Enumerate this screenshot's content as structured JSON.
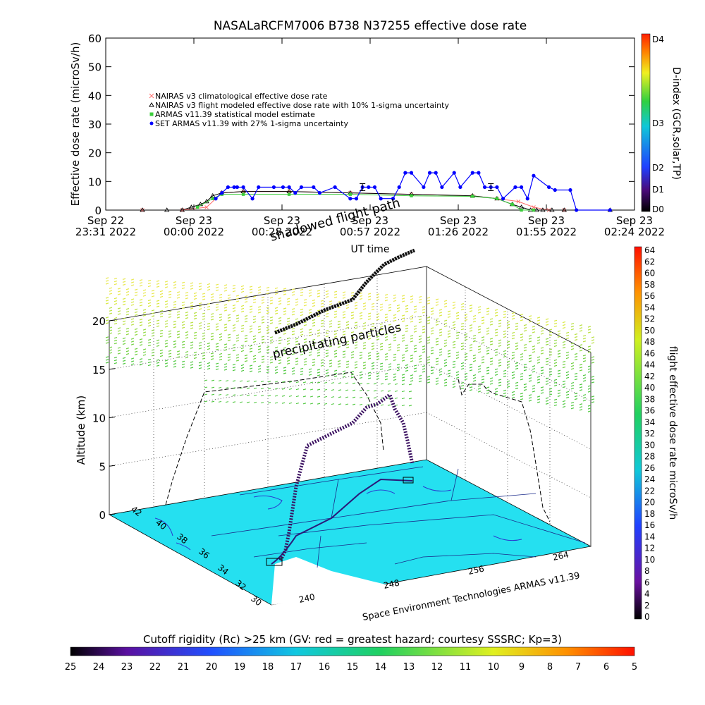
{
  "chart_data": [
    {
      "type": "line",
      "title": "NASALaRCFM7006  B738 N37255 effective dose rate",
      "xlabel": "UT time",
      "ylabel": "Effective dose rate (microSv/h)",
      "ylim": [
        0,
        60
      ],
      "yticks": [
        "0",
        "10",
        "20",
        "30",
        "40",
        "50",
        "60"
      ],
      "xticks": [
        {
          "top": "Sep 22",
          "bottom": "23:31 2022"
        },
        {
          "top": "Sep 23",
          "bottom": "00:00 2022"
        },
        {
          "top": "Sep 23",
          "bottom": "00:28 2022"
        },
        {
          "top": "Sep 23",
          "bottom": "00:57 2022"
        },
        {
          "top": "Sep 23",
          "bottom": "01:26 2022"
        },
        {
          "top": "Sep 23",
          "bottom": "01:55 2022"
        },
        {
          "top": "Sep 23",
          "bottom": "02:24 2022"
        }
      ],
      "xlim_minutes_from_first_tick": [
        0,
        173
      ],
      "legend_position": "upper-left",
      "series": [
        {
          "name": "NAIRAS v3 climatological effective dose rate",
          "color": "#ff6e6e",
          "marker": "x",
          "x": [
            12,
            25,
            33,
            38,
            45,
            60,
            80,
            100,
            120,
            128,
            135,
            140,
            145,
            150
          ],
          "y": [
            0,
            0,
            1,
            6,
            6.5,
            6.5,
            6,
            5.5,
            5,
            4,
            3,
            1,
            0,
            0
          ]
        },
        {
          "name": "NAIRAS v3 flight modeled effective dose rate with 10% 1-sigma uncertainty",
          "color": "#000000",
          "marker": "triangle",
          "x": [
            12,
            20,
            25,
            28,
            31,
            33,
            35,
            38,
            45,
            60,
            80,
            100,
            120,
            128,
            133,
            136,
            139,
            141,
            143,
            146,
            150,
            165
          ],
          "y": [
            0,
            0,
            0,
            1,
            2,
            3,
            5,
            6,
            6.5,
            6.5,
            6,
            5.5,
            5,
            4,
            2,
            1,
            0,
            0,
            0,
            0,
            0,
            0
          ]
        },
        {
          "name": "ARMAS v11.39 statistical model estimate",
          "color": "#3ccd3c",
          "marker": "square",
          "x": [
            30,
            35,
            38,
            45,
            60,
            80,
            100,
            120,
            128,
            133,
            136,
            140
          ],
          "y": [
            1,
            4,
            5.5,
            5.5,
            5.5,
            5.5,
            5,
            4.8,
            4,
            2,
            0,
            0
          ]
        },
        {
          "name": "SET ARMAS v11.39 with 27% 1-sigma uncertainty",
          "color": "#0000ff",
          "marker": "circle",
          "x": [
            36,
            38,
            40,
            42,
            43,
            45,
            48,
            50,
            55,
            58,
            60,
            62,
            64,
            68,
            70,
            75,
            80,
            82,
            84,
            86,
            88,
            90,
            94,
            96,
            98,
            100,
            104,
            106,
            108,
            110,
            114,
            116,
            120,
            122,
            124,
            126,
            128,
            130,
            134,
            136,
            138,
            140,
            145,
            147,
            152,
            154,
            165
          ],
          "y": [
            4,
            6,
            8,
            8,
            8,
            8,
            4,
            8,
            8,
            8,
            8,
            6,
            8,
            8,
            6,
            8,
            4,
            4,
            8,
            8,
            8,
            4,
            4,
            8,
            13,
            13,
            8,
            13,
            13,
            8,
            13,
            8,
            13,
            13,
            8,
            8,
            8,
            4,
            8,
            8,
            4,
            12,
            8,
            7,
            7,
            0,
            0
          ]
        }
      ],
      "error_bars": [
        {
          "x": 84,
          "y": 8
        },
        {
          "x": 126,
          "y": 8
        }
      ]
    },
    {
      "type": "scatter",
      "subtype": "3d-flight-track",
      "overlay_labels": [
        "shadowed flight path",
        "precipitating particles"
      ],
      "zlabel": "Altitude (km)",
      "zlim": [
        0,
        20
      ],
      "zticks": [
        "0",
        "5",
        "10",
        "15",
        "20"
      ],
      "lat_ticks": [
        "30",
        "32",
        "34",
        "36",
        "38",
        "40",
        "42"
      ],
      "lon_ticks": [
        "240",
        "248",
        "256",
        "264"
      ],
      "credit": "Space Environment Technologies ARMAS v11.39",
      "colorbar": {
        "label": "flight effective dose rate microSv/h",
        "range": [
          0,
          64
        ],
        "ticks": [
          "0",
          "2",
          "4",
          "6",
          "8",
          "10",
          "12",
          "14",
          "16",
          "18",
          "20",
          "22",
          "24",
          "26",
          "28",
          "30",
          "32",
          "34",
          "36",
          "38",
          "40",
          "42",
          "44",
          "46",
          "48",
          "50",
          "52",
          "54",
          "56",
          "58",
          "60",
          "62",
          "64"
        ]
      }
    }
  ],
  "d_index_bar": {
    "label": "D-index (GCR,solar,TP)",
    "ticks": [
      "D0",
      "D1",
      "D2",
      "D3",
      "D4"
    ]
  },
  "cutoff_bar": {
    "label": "Cutoff rigidity (Rc) >25 km (GV: red = greatest hazard; courtesy SSSRC; Kp=3)",
    "ticks": [
      "25",
      "24",
      "23",
      "22",
      "21",
      "20",
      "19",
      "18",
      "17",
      "16",
      "15",
      "14",
      "13",
      "12",
      "11",
      "10",
      "9",
      "8",
      "7",
      "6",
      "5"
    ]
  },
  "colors": {
    "map_fill": "#25e0f0",
    "track_dark": "#3a1a6a",
    "track_black": "#111111"
  }
}
